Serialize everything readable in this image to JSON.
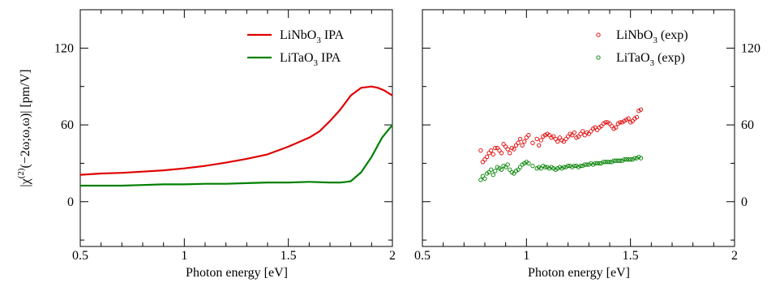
{
  "chart_data": [
    {
      "type": "line",
      "xlabel": "Photon energy [eV]",
      "ylabel": "|χ(2)(−2ω;ω,ω)| [pm/V]",
      "ylabel_parts": {
        "pre": "|χ",
        "sup": "(2)",
        "post": "(−2ω;ω,ω)| [pm/V]"
      },
      "xlim": [
        0.5,
        2.0
      ],
      "ylim": [
        -35,
        150
      ],
      "xticks": [
        0.5,
        1,
        1.5,
        2
      ],
      "xtick_labels": [
        "0.5",
        "1",
        "1.5",
        "2"
      ],
      "yticks": [
        0,
        60,
        120
      ],
      "ytick_labels": [
        "0",
        "60",
        "120"
      ],
      "grid": false,
      "legend_position": "top-right",
      "series": [
        {
          "name": "LiNbO3  IPA",
          "label_parts": {
            "a": "LiNbO",
            "sub": "3",
            "b": "  IPA"
          },
          "color": "#e00000",
          "x": [
            0.5,
            0.6,
            0.7,
            0.8,
            0.9,
            1.0,
            1.1,
            1.2,
            1.3,
            1.4,
            1.5,
            1.6,
            1.65,
            1.7,
            1.75,
            1.8,
            1.85,
            1.9,
            1.93,
            1.96,
            2.0
          ],
          "y": [
            21,
            22,
            22.5,
            23.5,
            24.5,
            26,
            28,
            30.5,
            33.5,
            37,
            43,
            50,
            55,
            63,
            72,
            83,
            89,
            90,
            89,
            87,
            83
          ]
        },
        {
          "name": "LiTaO3  IPA",
          "label_parts": {
            "a": "LiTaO",
            "sub": "3",
            "b": "  IPA"
          },
          "color": "#008000",
          "x": [
            0.5,
            0.6,
            0.7,
            0.8,
            0.9,
            1.0,
            1.1,
            1.2,
            1.3,
            1.4,
            1.5,
            1.6,
            1.7,
            1.75,
            1.78,
            1.8,
            1.85,
            1.9,
            1.95,
            2.0
          ],
          "y": [
            12.5,
            12.5,
            12.5,
            13,
            13.5,
            13.5,
            14,
            14,
            14.5,
            15,
            15,
            15.5,
            15,
            15,
            15.5,
            16,
            23,
            35,
            50,
            60
          ]
        }
      ]
    },
    {
      "type": "scatter",
      "xlabel": "Photon energy [eV]",
      "xlim": [
        0.5,
        2.0
      ],
      "ylim": [
        -35,
        150
      ],
      "xticks": [
        0.5,
        1,
        1.5,
        2
      ],
      "xtick_labels": [
        "0.5",
        "1",
        "1.5",
        "2"
      ],
      "yticks": [
        0,
        60,
        120
      ],
      "ytick_labels": [
        "0",
        "60",
        "120"
      ],
      "y_axis_side": "right",
      "grid": false,
      "legend_position": "top-right",
      "series": [
        {
          "name": "LiNbO3 (exp)",
          "label_parts": {
            "a": "LiNbO",
            "sub": "3",
            "b": " (exp)"
          },
          "color": "#e00000",
          "x": [
            0.78,
            0.79,
            0.8,
            0.81,
            0.82,
            0.83,
            0.84,
            0.85,
            0.86,
            0.87,
            0.88,
            0.89,
            0.9,
            0.91,
            0.92,
            0.93,
            0.94,
            0.95,
            0.96,
            0.97,
            0.98,
            0.99,
            1.0,
            1.01,
            1.03,
            1.05,
            1.06,
            1.07,
            1.08,
            1.09,
            1.1,
            1.11,
            1.12,
            1.13,
            1.14,
            1.15,
            1.16,
            1.17,
            1.18,
            1.19,
            1.2,
            1.21,
            1.22,
            1.23,
            1.24,
            1.25,
            1.26,
            1.27,
            1.28,
            1.29,
            1.3,
            1.31,
            1.32,
            1.33,
            1.34,
            1.35,
            1.36,
            1.37,
            1.38,
            1.39,
            1.4,
            1.41,
            1.42,
            1.43,
            1.44,
            1.45,
            1.46,
            1.47,
            1.48,
            1.49,
            1.5,
            1.51,
            1.52,
            1.53,
            1.54,
            1.55
          ],
          "y": [
            40,
            31,
            33,
            35,
            38,
            40,
            37,
            42,
            42,
            40,
            38,
            45,
            43,
            41,
            38,
            42,
            41,
            44,
            46,
            49,
            44,
            47,
            50,
            52,
            46,
            49,
            44,
            48,
            51,
            52,
            53,
            52,
            50,
            51,
            49,
            47,
            50,
            48,
            47,
            49,
            51,
            53,
            52,
            54,
            50,
            51,
            53,
            55,
            52,
            54,
            53,
            55,
            57,
            58,
            56,
            58,
            59,
            61,
            62,
            62,
            61,
            59,
            57,
            58,
            61,
            62,
            62,
            63,
            64,
            65,
            62,
            63,
            65,
            66,
            71,
            72
          ],
          "marker": "open-circle"
        },
        {
          "name": "LiTaO3 (exp)",
          "label_parts": {
            "a": "LiTaO",
            "sub": "3",
            "b": " (exp)"
          },
          "color": "#008000",
          "x": [
            0.78,
            0.79,
            0.8,
            0.81,
            0.82,
            0.83,
            0.84,
            0.85,
            0.86,
            0.87,
            0.88,
            0.89,
            0.9,
            0.91,
            0.92,
            0.93,
            0.94,
            0.95,
            0.96,
            0.97,
            0.98,
            0.99,
            1.0,
            1.01,
            1.03,
            1.05,
            1.06,
            1.07,
            1.08,
            1.09,
            1.1,
            1.11,
            1.12,
            1.13,
            1.14,
            1.15,
            1.16,
            1.17,
            1.18,
            1.19,
            1.2,
            1.21,
            1.22,
            1.23,
            1.24,
            1.25,
            1.26,
            1.27,
            1.28,
            1.29,
            1.3,
            1.31,
            1.32,
            1.33,
            1.34,
            1.35,
            1.36,
            1.37,
            1.38,
            1.39,
            1.4,
            1.41,
            1.42,
            1.43,
            1.44,
            1.45,
            1.46,
            1.47,
            1.48,
            1.49,
            1.5,
            1.51,
            1.52,
            1.53,
            1.54,
            1.55
          ],
          "y": [
            17,
            20,
            18,
            22,
            23,
            25,
            21,
            24,
            27,
            26,
            25,
            28,
            27,
            29,
            25,
            23,
            22,
            24,
            25,
            27,
            29,
            30,
            31,
            30,
            28,
            26,
            27,
            26,
            28,
            27,
            27,
            26,
            27,
            26,
            25,
            26,
            27,
            26,
            27,
            27,
            28,
            28,
            27,
            28,
            28,
            27,
            28,
            28,
            29,
            29,
            29,
            30,
            29,
            30,
            30,
            30,
            30,
            31,
            31,
            31,
            31,
            31,
            32,
            32,
            32,
            32,
            32,
            33,
            33,
            33,
            33,
            33,
            34,
            34,
            35,
            34
          ],
          "marker": "open-circle"
        }
      ]
    }
  ]
}
